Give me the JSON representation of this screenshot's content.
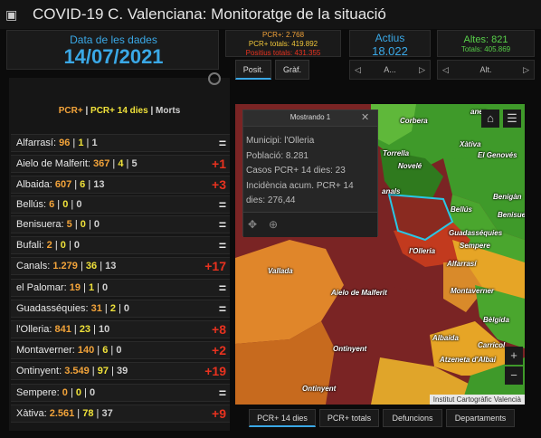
{
  "title": "COVID-19 C. Valenciana: Monitoratge de la situació",
  "date_panel": {
    "label": "Data de les dades",
    "value": "14/07/2021"
  },
  "pcr_panel": {
    "line1": "PCR+: 2.768",
    "line2": "PCR+ totals: 419.892",
    "line3": "Positius totals: 431.355"
  },
  "actius_panel": {
    "label": "Actius",
    "value": "18.022"
  },
  "altes_panel": {
    "label": "Altes: 821",
    "sub": "Totals: 405.869"
  },
  "pager_a": {
    "prev": "◁",
    "current": "A...",
    "next": "▷"
  },
  "pager_b": {
    "prev": "◁",
    "current": "Alt.",
    "next": "▷"
  },
  "view_tabs": {
    "posit": "Posit.",
    "graf": "Gràf."
  },
  "legend": {
    "pcr": "PCR+",
    "sep1": " | ",
    "pcr14": "PCR+ 14 dies",
    "sep2": " | ",
    "morts": "Morts"
  },
  "colors": {
    "pcr": "#f2a33a",
    "pcr14": "#f0e23a",
    "morts": "#d0d0d0",
    "delta_up": "#e8321f",
    "accent": "#3aa8e6",
    "green": "#58d04a"
  },
  "municipalities": [
    {
      "name": "Alfarrasí",
      "pcr": "96",
      "pcr14": "1",
      "morts": "1",
      "delta": "="
    },
    {
      "name": "Aielo de Malferit",
      "pcr": "367",
      "pcr14": "4",
      "morts": "5",
      "delta": "+1"
    },
    {
      "name": "Albaida",
      "pcr": "607",
      "pcr14": "6",
      "morts": "13",
      "delta": "+3"
    },
    {
      "name": "Bellús",
      "pcr": "6",
      "pcr14": "0",
      "morts": "0",
      "delta": "="
    },
    {
      "name": "Benisuera",
      "pcr": "5",
      "pcr14": "0",
      "morts": "0",
      "delta": "="
    },
    {
      "name": "Bufali",
      "pcr": "2",
      "pcr14": "0",
      "morts": "0",
      "delta": "="
    },
    {
      "name": "Canals",
      "pcr": "1.279",
      "pcr14": "36",
      "morts": "13",
      "delta": "+17"
    },
    {
      "name": "el Palomar",
      "pcr": "19",
      "pcr14": "1",
      "morts": "0",
      "delta": "="
    },
    {
      "name": "Guadasséquies",
      "pcr": "31",
      "pcr14": "2",
      "morts": "0",
      "delta": "="
    },
    {
      "name": "l'Olleria",
      "pcr": "841",
      "pcr14": "23",
      "morts": "10",
      "delta": "+8"
    },
    {
      "name": "Montaverner",
      "pcr": "140",
      "pcr14": "6",
      "morts": "0",
      "delta": "+2"
    },
    {
      "name": "Ontinyent",
      "pcr": "3.549",
      "pcr14": "97",
      "morts": "39",
      "delta": "+19"
    },
    {
      "name": "Sempere",
      "pcr": "0",
      "pcr14": "0",
      "morts": "0",
      "delta": "="
    },
    {
      "name": "Xàtiva",
      "pcr": "2.561",
      "pcr14": "78",
      "morts": "37",
      "delta": "+9"
    }
  ],
  "popup": {
    "header": "Mostrando 1",
    "close": "✕",
    "line1": "Municipi: l'Olleria",
    "line2": "Població: 8.281",
    "line3": "Casos PCR+ 14 dies: 23",
    "line4": "Incidència acum. PCR+ 14",
    "line5": "dies: 276,44"
  },
  "map_labels": {
    "corbera": "Corbera",
    "anes": "anes",
    "xativa": "Xàtiva",
    "torrella": "Torrella",
    "genoves": "El Genovés",
    "novele": "Novelé",
    "canals": "anals",
    "benigan": "Benigàn",
    "bellus": "Bellús",
    "benisuera": "Benisuera",
    "guadasseq": "Guadasséquies",
    "sempere": "Sempere",
    "olleria": "l'Olleria",
    "alfarrasi": "Alfarrasí",
    "vallada": "Vallada",
    "aielo": "Aielo de Malferit",
    "montaverner": "Montaverner",
    "belgida": "Bèlgida",
    "albaida": "Albaida",
    "carricola": "Carricol",
    "atzeneta": "Atzeneta d'Albai",
    "ontinyent1": "Ontinyent",
    "ontinyent2": "Ontinyent",
    "attribution": "Institut Cartogràfic Valencià"
  },
  "map_controls": {
    "home": "⌂",
    "list": "☰",
    "zoom_in": "+",
    "zoom_out": "−"
  },
  "bottom_tabs": {
    "pcr14": "PCR+ 14 dies",
    "pcr": "PCR+ totals",
    "def": "Defuncions",
    "dep": "Departaments"
  }
}
